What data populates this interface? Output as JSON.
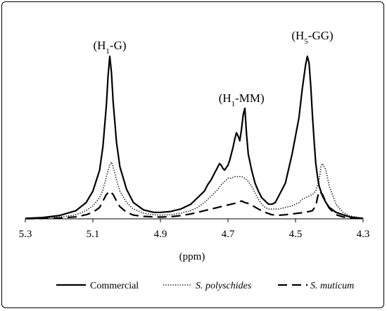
{
  "chart_data": {
    "type": "line",
    "xlabel": "(ppm)",
    "xlim": [
      5.3,
      4.3
    ],
    "x_reversed": true,
    "x_ticks": [
      "5.3",
      "5.1",
      "4.9",
      "4.7",
      "4.5",
      "4.3"
    ],
    "grid": false,
    "legend_position": "bottom",
    "annotations": [
      {
        "text": "(H",
        "sub": "1",
        "rest": "-G)",
        "x": 5.05
      },
      {
        "text": "(H",
        "sub": "1",
        "rest": "-MM)",
        "x": 4.66
      },
      {
        "text": "(H",
        "sub": "5",
        "rest": "-GG)",
        "x": 4.45
      }
    ],
    "series": [
      {
        "name": "Commercial",
        "style": "solid",
        "x": [
          5.3,
          5.25,
          5.2,
          5.15,
          5.12,
          5.1,
          5.08,
          5.07,
          5.06,
          5.055,
          5.05,
          5.045,
          5.04,
          5.03,
          5.02,
          5.0,
          4.98,
          4.95,
          4.92,
          4.9,
          4.87,
          4.84,
          4.81,
          4.79,
          4.77,
          4.76,
          4.75,
          4.74,
          4.73,
          4.725,
          4.72,
          4.715,
          4.71,
          4.7,
          4.695,
          4.69,
          4.685,
          4.68,
          4.675,
          4.67,
          4.665,
          4.66,
          4.655,
          4.65,
          4.645,
          4.64,
          4.63,
          4.62,
          4.61,
          4.6,
          4.59,
          4.58,
          4.57,
          4.56,
          4.55,
          4.53,
          4.51,
          4.49,
          4.48,
          4.47,
          4.465,
          4.46,
          4.455,
          4.45,
          4.445,
          4.44,
          4.435,
          4.43,
          4.42,
          4.41,
          4.4,
          4.38,
          4.36,
          4.34,
          4.32,
          4.3
        ],
        "values": [
          0.3,
          0.8,
          2.0,
          5.0,
          10,
          17,
          30,
          45,
          70,
          88,
          100,
          90,
          72,
          47,
          32,
          18,
          10,
          5.5,
          4.0,
          4.0,
          4.5,
          6.0,
          9.0,
          13,
          17,
          21,
          24,
          28,
          32,
          34,
          33,
          31,
          30,
          33,
          36,
          40,
          44,
          49,
          53,
          51,
          48,
          55,
          64,
          68,
          52,
          40,
          30,
          22,
          17,
          13,
          11,
          9.0,
          9.0,
          10,
          14,
          22,
          40,
          62,
          80,
          95,
          100,
          96,
          82,
          64,
          48,
          34,
          26,
          20,
          14,
          10,
          7.0,
          4.0,
          2.5,
          1.2,
          0.6,
          0.3
        ]
      },
      {
        "name": "S. polyschides",
        "style": "dotted",
        "x": [
          5.3,
          5.25,
          5.2,
          5.15,
          5.12,
          5.1,
          5.08,
          5.07,
          5.06,
          5.05,
          5.045,
          5.04,
          5.03,
          5.02,
          5.0,
          4.98,
          4.95,
          4.92,
          4.9,
          4.87,
          4.84,
          4.81,
          4.79,
          4.77,
          4.76,
          4.75,
          4.74,
          4.73,
          4.72,
          4.71,
          4.7,
          4.69,
          4.68,
          4.67,
          4.66,
          4.65,
          4.64,
          4.63,
          4.62,
          4.61,
          4.6,
          4.59,
          4.58,
          4.57,
          4.55,
          4.53,
          4.51,
          4.49,
          4.48,
          4.47,
          4.46,
          4.45,
          4.44,
          4.43,
          4.425,
          4.42,
          4.41,
          4.4,
          4.38,
          4.36,
          4.34,
          4.3
        ],
        "values": [
          0.2,
          0.4,
          1.0,
          2.5,
          5.0,
          8.0,
          13,
          18,
          26,
          33,
          35,
          32,
          24,
          17,
          10,
          6.0,
          3.5,
          2.5,
          2.3,
          2.5,
          3.5,
          5.0,
          7.0,
          10,
          12,
          14,
          16,
          18,
          21,
          23,
          25,
          25,
          26,
          26,
          26,
          25,
          23,
          20,
          16,
          12,
          9.0,
          7.0,
          6.0,
          6.0,
          6.0,
          7.0,
          8.0,
          10,
          12,
          13,
          14,
          15,
          17,
          24,
          32,
          34,
          30,
          20,
          9.0,
          4.0,
          1.8,
          0.4
        ]
      },
      {
        "name": "S. muticum",
        "style": "dashed",
        "x": [
          5.3,
          5.25,
          5.2,
          5.15,
          5.12,
          5.1,
          5.08,
          5.07,
          5.06,
          5.05,
          5.04,
          5.03,
          5.02,
          5.0,
          4.98,
          4.95,
          4.92,
          4.9,
          4.87,
          4.84,
          4.81,
          4.79,
          4.77,
          4.75,
          4.73,
          4.71,
          4.69,
          4.67,
          4.66,
          4.65,
          4.64,
          4.63,
          4.61,
          4.59,
          4.57,
          4.55,
          4.53,
          4.51,
          4.49,
          4.47,
          4.45,
          4.44,
          4.435,
          4.43,
          4.42,
          4.41,
          4.4,
          4.38,
          4.36,
          4.34,
          4.3
        ],
        "values": [
          0.1,
          0.2,
          0.5,
          1.2,
          2.5,
          4.0,
          7.0,
          11,
          15,
          17,
          15,
          11,
          7.5,
          4.0,
          2.3,
          1.5,
          1.2,
          1.1,
          1.3,
          2.0,
          3.0,
          4.0,
          5.0,
          6.0,
          7.0,
          8.0,
          9.0,
          10,
          11,
          10,
          9.5,
          8.5,
          6.0,
          4.0,
          2.5,
          2.2,
          2.5,
          3.0,
          3.5,
          4.0,
          5.0,
          8.0,
          13,
          17,
          15,
          10,
          6.5,
          2.5,
          1.2,
          0.5,
          0.2
        ]
      }
    ]
  }
}
